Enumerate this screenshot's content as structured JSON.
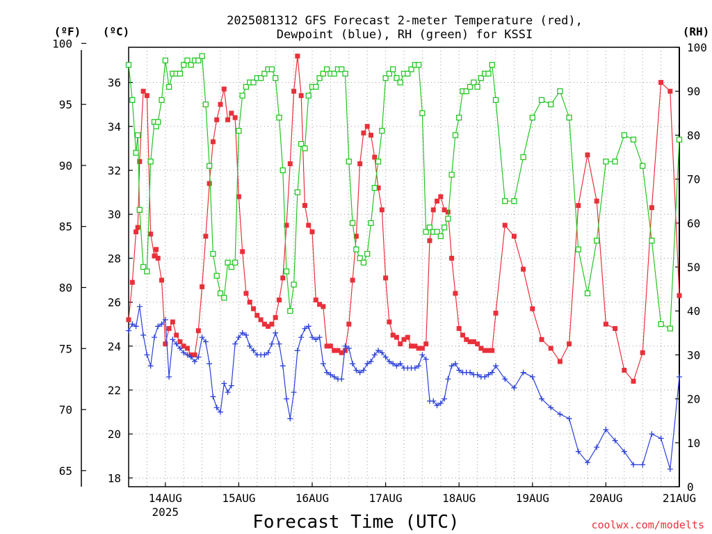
{
  "chart_data": {
    "type": "line",
    "title_line1": "2025081312 GFS Forecast 2-meter Temperature (red),",
    "title_line2": "Dewpoint (blue), RH (green) for KSSI",
    "xlabel": "Forecast Time (UTC)",
    "credit": "coolwx.com/modelts",
    "unit_f": "(ºF)",
    "unit_c": "(ºC)",
    "unit_rh": "(RH)",
    "x_range_days": [
      13.5,
      21.0
    ],
    "x_ticks": [
      {
        "day": 14,
        "label": "14AUG",
        "sublabel": "2025"
      },
      {
        "day": 15,
        "label": "15AUG"
      },
      {
        "day": 16,
        "label": "16AUG"
      },
      {
        "day": 17,
        "label": "17AUG"
      },
      {
        "day": 18,
        "label": "18AUG"
      },
      {
        "day": 19,
        "label": "19AUG"
      },
      {
        "day": 20,
        "label": "20AUG"
      },
      {
        "day": 21,
        "label": "21AUG"
      }
    ],
    "ylim_c": [
      17.6,
      37.6
    ],
    "ylim_rh": [
      0,
      100
    ],
    "ticks_c": [
      "18",
      "20",
      "22",
      "24",
      "26",
      "28",
      "30",
      "32",
      "34",
      "36"
    ],
    "ticks_f": [
      "65",
      "70",
      "75",
      "80",
      "85",
      "90",
      "95",
      "100"
    ],
    "ticks_rh": [
      "0",
      "10",
      "20",
      "30",
      "40",
      "50",
      "60",
      "70",
      "80",
      "90",
      "100"
    ],
    "colors": {
      "temperature": "#e8303a",
      "dewpoint": "#2a3fd8",
      "rh": "#22c522",
      "grid": "#999999"
    },
    "series": [
      {
        "name": "Temperature (red)",
        "units": "C",
        "x": [
          13.5,
          13.55,
          13.6,
          13.625,
          13.65,
          13.7,
          13.75,
          13.8,
          13.85,
          13.875,
          13.9,
          13.95,
          14,
          14.05,
          14.1,
          14.15,
          14.2,
          14.25,
          14.3,
          14.35,
          14.4,
          14.45,
          14.5,
          14.55,
          14.6,
          14.65,
          14.7,
          14.75,
          14.8,
          14.85,
          14.9,
          14.95,
          15,
          15.05,
          15.1,
          15.15,
          15.2,
          15.25,
          15.3,
          15.35,
          15.4,
          15.45,
          15.5,
          15.55,
          15.6,
          15.65,
          15.7,
          15.75,
          15.8,
          15.85,
          15.9,
          15.95,
          16,
          16.05,
          16.1,
          16.15,
          16.2,
          16.25,
          16.3,
          16.35,
          16.4,
          16.45,
          16.5,
          16.55,
          16.6,
          16.65,
          16.7,
          16.75,
          16.8,
          16.85,
          16.9,
          16.95,
          17,
          17.05,
          17.1,
          17.15,
          17.2,
          17.25,
          17.3,
          17.35,
          17.4,
          17.45,
          17.5,
          17.55,
          17.6,
          17.65,
          17.7,
          17.75,
          17.8,
          17.85,
          17.9,
          17.95,
          18,
          18.05,
          18.1,
          18.15,
          18.2,
          18.25,
          18.3,
          18.35,
          18.4,
          18.45,
          18.5,
          18.625,
          18.75,
          18.875,
          19,
          19.125,
          19.25,
          19.375,
          19.5,
          19.625,
          19.75,
          19.875,
          20,
          20.125,
          20.25,
          20.375,
          20.5,
          20.625,
          20.75,
          20.875,
          21
        ],
        "values": [
          25.2,
          26.9,
          29.2,
          29.4,
          32.4,
          35.6,
          35.4,
          29.1,
          28.1,
          28.4,
          28.0,
          27.0,
          24.1,
          24.8,
          25.1,
          24.5,
          24.2,
          24.0,
          23.9,
          23.6,
          23.6,
          24.7,
          26.7,
          29.0,
          31.4,
          33.3,
          34.3,
          35.0,
          35.7,
          34.3,
          34.6,
          34.4,
          30.8,
          28.3,
          26.4,
          26.0,
          25.7,
          25.4,
          25.2,
          25.0,
          24.9,
          25.0,
          25.3,
          26.1,
          27.1,
          29.5,
          32.3,
          35.6,
          37.2,
          35.4,
          30.4,
          29.5,
          29.2,
          26.1,
          25.9,
          25.8,
          24.0,
          24.0,
          23.8,
          23.8,
          23.7,
          23.8,
          25.0,
          27.0,
          29.0,
          32.3,
          33.7,
          34.0,
          33.6,
          32.6,
          31.2,
          30.2,
          27.1,
          25.1,
          24.5,
          24.4,
          24.1,
          24.3,
          24.4,
          24.0,
          24.0,
          23.9,
          23.9,
          24.1,
          28.8,
          30.2,
          30.6,
          30.8,
          30.2,
          30.1,
          28.0,
          26.4,
          24.8,
          24.5,
          24.3,
          24.2,
          24.2,
          24.1,
          23.9,
          23.8,
          23.8,
          23.8,
          25.5,
          29.5,
          29.0,
          27.5,
          25.7,
          24.3,
          23.9,
          23.3,
          24.1,
          30.4,
          32.7,
          30.6,
          25.0,
          24.8,
          22.9,
          22.4,
          23.7,
          30.3,
          36.0,
          35.6,
          26.3
        ]
      },
      {
        "name": "Dewpoint (blue)",
        "units": "C",
        "x": [
          13.5,
          13.55,
          13.6,
          13.65,
          13.7,
          13.75,
          13.8,
          13.85,
          13.9,
          13.95,
          14,
          14.05,
          14.1,
          14.15,
          14.2,
          14.25,
          14.3,
          14.35,
          14.4,
          14.45,
          14.5,
          14.55,
          14.6,
          14.65,
          14.7,
          14.75,
          14.8,
          14.85,
          14.9,
          14.95,
          15,
          15.05,
          15.1,
          15.15,
          15.2,
          15.25,
          15.3,
          15.35,
          15.4,
          15.45,
          15.5,
          15.55,
          15.6,
          15.65,
          15.7,
          15.75,
          15.8,
          15.85,
          15.9,
          15.95,
          16,
          16.05,
          16.1,
          16.15,
          16.2,
          16.25,
          16.3,
          16.35,
          16.4,
          16.45,
          16.5,
          16.55,
          16.6,
          16.65,
          16.7,
          16.75,
          16.8,
          16.85,
          16.9,
          16.95,
          17,
          17.05,
          17.1,
          17.15,
          17.2,
          17.25,
          17.3,
          17.35,
          17.4,
          17.45,
          17.5,
          17.55,
          17.6,
          17.65,
          17.7,
          17.75,
          17.8,
          17.85,
          17.9,
          17.95,
          18,
          18.05,
          18.1,
          18.15,
          18.2,
          18.25,
          18.3,
          18.35,
          18.4,
          18.45,
          18.5,
          18.625,
          18.75,
          18.875,
          19,
          19.125,
          19.25,
          19.375,
          19.5,
          19.625,
          19.75,
          19.875,
          20,
          20.125,
          20.25,
          20.375,
          20.5,
          20.625,
          20.75,
          20.875,
          21
        ],
        "values": [
          24.7,
          25.0,
          24.9,
          25.8,
          24.5,
          23.6,
          23.1,
          24.4,
          24.9,
          25.0,
          25.2,
          22.6,
          24.3,
          24.1,
          23.9,
          23.7,
          23.6,
          23.5,
          23.3,
          23.5,
          24.4,
          24.2,
          23.2,
          21.7,
          21.2,
          21.0,
          22.3,
          21.9,
          22.2,
          24.1,
          24.4,
          24.6,
          24.5,
          24.0,
          23.8,
          23.6,
          23.6,
          23.6,
          23.7,
          24.1,
          24.6,
          24.1,
          23.1,
          21.6,
          20.7,
          21.9,
          23.8,
          24.4,
          24.8,
          24.9,
          24.4,
          24.3,
          24.4,
          23.2,
          22.8,
          22.7,
          22.6,
          22.5,
          22.5,
          24.0,
          23.9,
          23.2,
          22.9,
          22.8,
          22.9,
          23.2,
          23.3,
          23.6,
          23.8,
          23.7,
          23.5,
          23.3,
          23.2,
          23.1,
          23.2,
          23.0,
          23.0,
          23.0,
          23.0,
          23.1,
          23.6,
          23.4,
          21.5,
          21.5,
          21.3,
          21.4,
          21.6,
          22.5,
          23.1,
          23.2,
          22.9,
          22.8,
          22.8,
          22.8,
          22.7,
          22.7,
          22.6,
          22.6,
          22.7,
          22.8,
          23.1,
          22.5,
          22.1,
          22.8,
          22.6,
          21.6,
          21.2,
          20.9,
          20.7,
          19.2,
          18.7,
          19.4,
          20.2,
          19.7,
          19.2,
          18.6,
          18.6,
          20.0,
          19.8,
          18.4,
          22.6
        ]
      },
      {
        "name": "RH (green)",
        "units": "%",
        "x": [
          13.5,
          13.55,
          13.6,
          13.625,
          13.65,
          13.7,
          13.75,
          13.8,
          13.85,
          13.875,
          13.9,
          13.95,
          14,
          14.05,
          14.1,
          14.15,
          14.2,
          14.25,
          14.3,
          14.35,
          14.4,
          14.45,
          14.5,
          14.55,
          14.6,
          14.65,
          14.7,
          14.75,
          14.8,
          14.85,
          14.9,
          14.95,
          15,
          15.05,
          15.1,
          15.15,
          15.2,
          15.25,
          15.3,
          15.35,
          15.4,
          15.45,
          15.5,
          15.55,
          15.6,
          15.65,
          15.7,
          15.75,
          15.8,
          15.85,
          15.9,
          15.95,
          16,
          16.05,
          16.1,
          16.15,
          16.2,
          16.25,
          16.3,
          16.35,
          16.4,
          16.45,
          16.5,
          16.55,
          16.6,
          16.65,
          16.7,
          16.75,
          16.8,
          16.85,
          16.9,
          16.95,
          17,
          17.05,
          17.1,
          17.15,
          17.2,
          17.25,
          17.3,
          17.35,
          17.4,
          17.45,
          17.5,
          17.55,
          17.6,
          17.65,
          17.7,
          17.75,
          17.8,
          17.85,
          17.9,
          17.95,
          18,
          18.05,
          18.1,
          18.15,
          18.2,
          18.25,
          18.3,
          18.35,
          18.4,
          18.45,
          18.5,
          18.625,
          18.75,
          18.875,
          19,
          19.125,
          19.25,
          19.375,
          19.5,
          19.625,
          19.75,
          19.875,
          20,
          20.125,
          20.25,
          20.375,
          20.5,
          20.625,
          20.75,
          20.875,
          21
        ],
        "values": [
          96,
          88,
          76,
          80,
          63,
          50,
          49,
          74,
          83,
          82,
          83,
          88,
          97,
          91,
          94,
          94,
          94,
          96,
          97,
          96,
          97,
          97,
          98,
          87,
          73,
          53,
          48,
          44,
          43,
          51,
          50,
          51,
          81,
          89,
          91,
          92,
          92,
          93,
          93,
          94,
          95,
          95,
          93,
          84,
          72,
          49,
          40,
          46,
          67,
          78,
          77,
          89,
          91,
          91,
          93,
          94,
          95,
          94,
          94,
          95,
          95,
          94,
          74,
          60,
          54,
          52,
          51,
          53,
          60,
          68,
          74,
          81,
          93,
          94,
          95,
          93,
          92,
          94,
          94,
          95,
          96,
          96,
          85,
          58,
          59,
          58,
          58,
          57,
          59,
          61,
          71,
          80,
          84,
          90,
          90,
          91,
          92,
          91,
          93,
          94,
          94,
          96,
          88,
          65,
          65,
          75,
          84,
          88,
          87,
          90,
          84,
          54,
          44,
          56,
          74,
          74,
          80,
          79,
          73,
          56,
          37,
          36,
          79
        ]
      }
    ]
  }
}
